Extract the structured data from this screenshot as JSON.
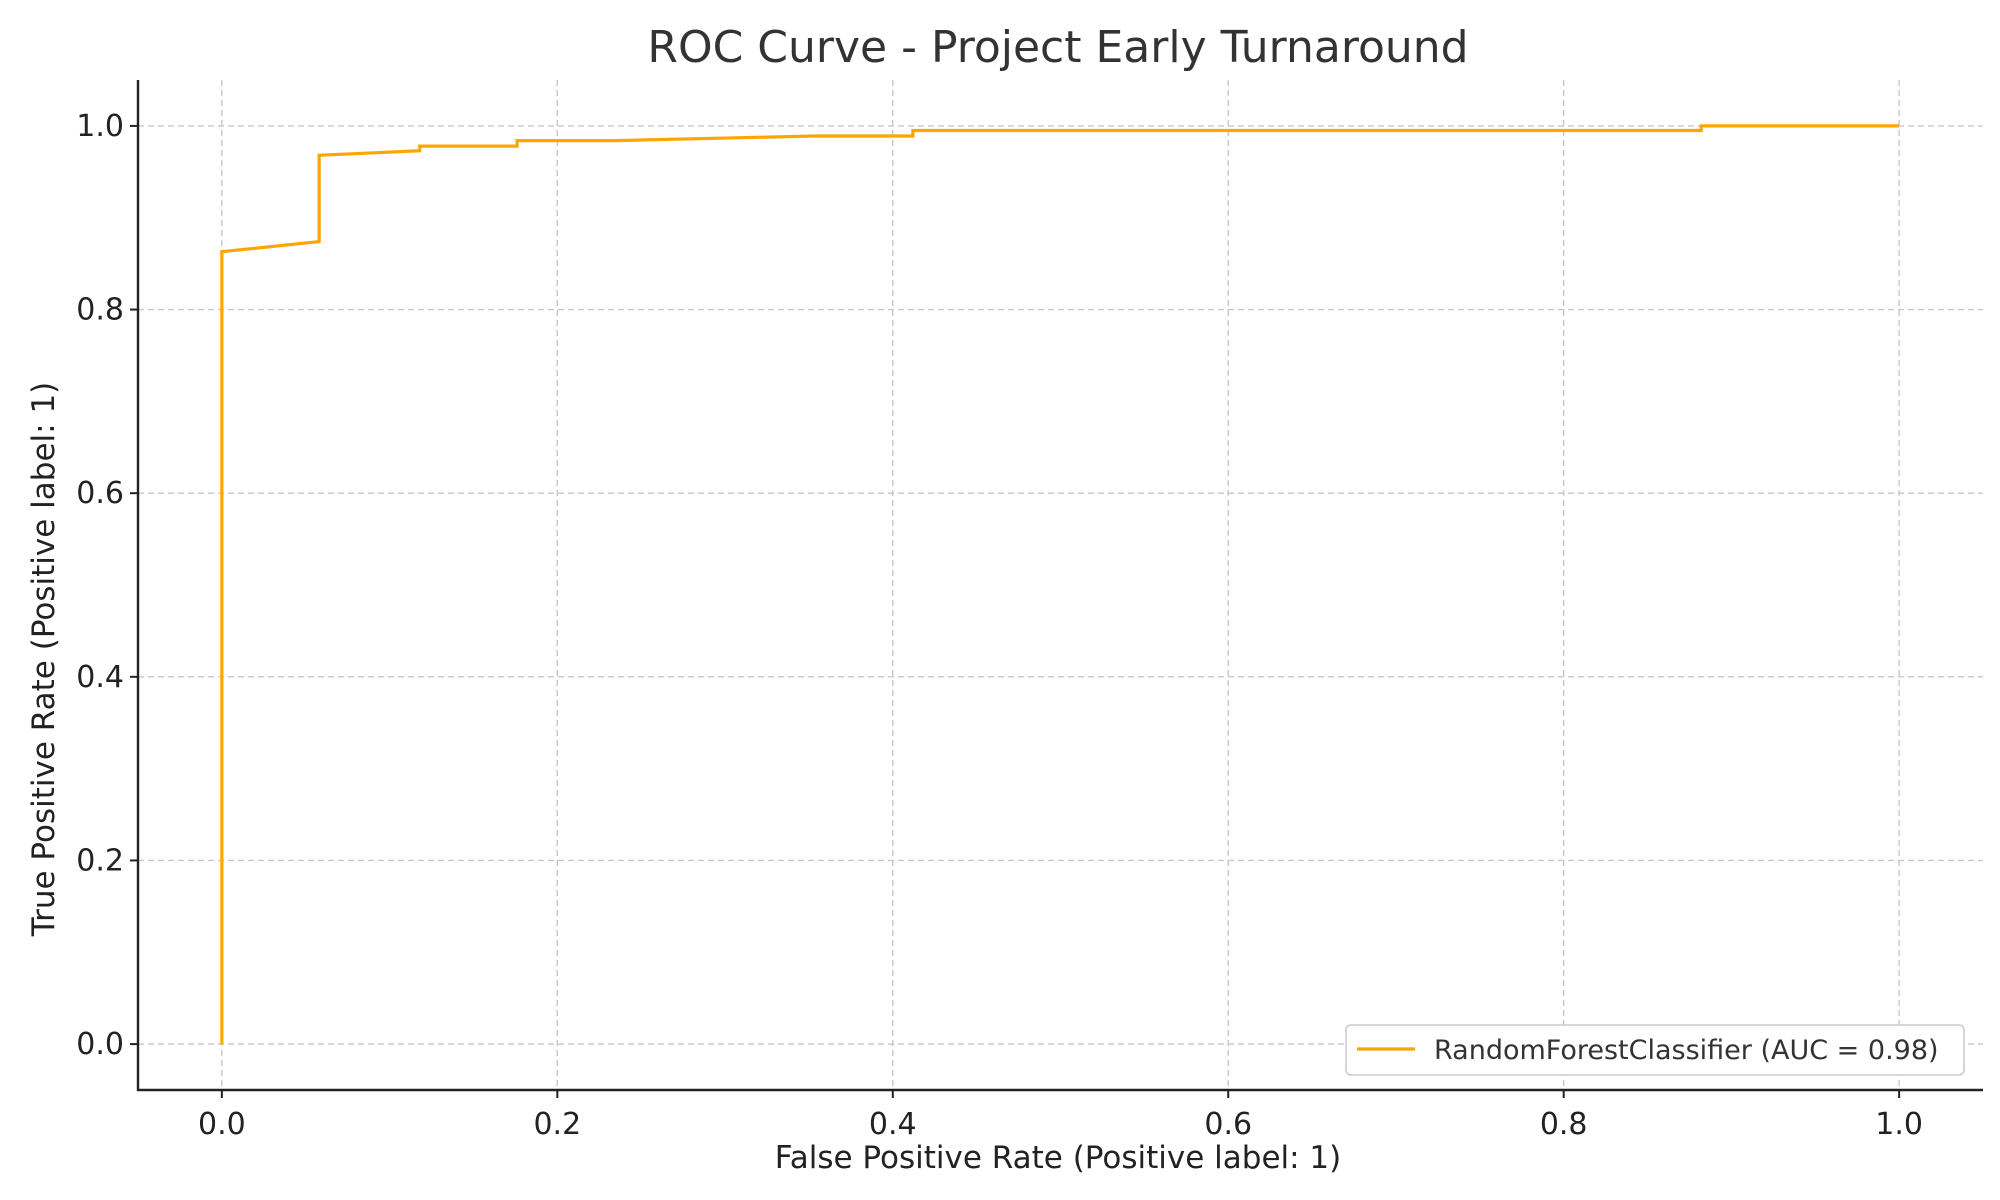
{
  "chart_data": {
    "type": "line",
    "title": "ROC Curve - Project Early Turnaround",
    "xlabel": "False Positive Rate (Positive label: 1)",
    "ylabel": "True Positive Rate (Positive label: 1)",
    "xlim": [
      -0.05,
      1.05
    ],
    "ylim": [
      -0.05,
      1.05
    ],
    "x_ticks": [
      0.0,
      0.2,
      0.4,
      0.6,
      0.8,
      1.0
    ],
    "x_tick_labels": [
      "0.0",
      "0.2",
      "0.4",
      "0.6",
      "0.8",
      "1.0"
    ],
    "y_ticks": [
      0.0,
      0.2,
      0.4,
      0.6,
      0.8,
      1.0
    ],
    "y_tick_labels": [
      "0.0",
      "0.2",
      "0.4",
      "0.6",
      "0.8",
      "1.0"
    ],
    "grid": true,
    "legend_position": "lower-right",
    "series": [
      {
        "name": "RandomForestClassifier (AUC = 0.98)",
        "color": "#FFA500",
        "x": [
          0.0,
          0.0,
          0.058,
          0.058,
          0.118,
          0.118,
          0.176,
          0.176,
          0.235,
          0.353,
          0.412,
          0.412,
          0.882,
          0.882,
          1.0
        ],
        "y": [
          0.0,
          0.863,
          0.874,
          0.968,
          0.973,
          0.978,
          0.978,
          0.984,
          0.984,
          0.989,
          0.989,
          0.995,
          0.995,
          1.0,
          1.0
        ]
      }
    ]
  }
}
